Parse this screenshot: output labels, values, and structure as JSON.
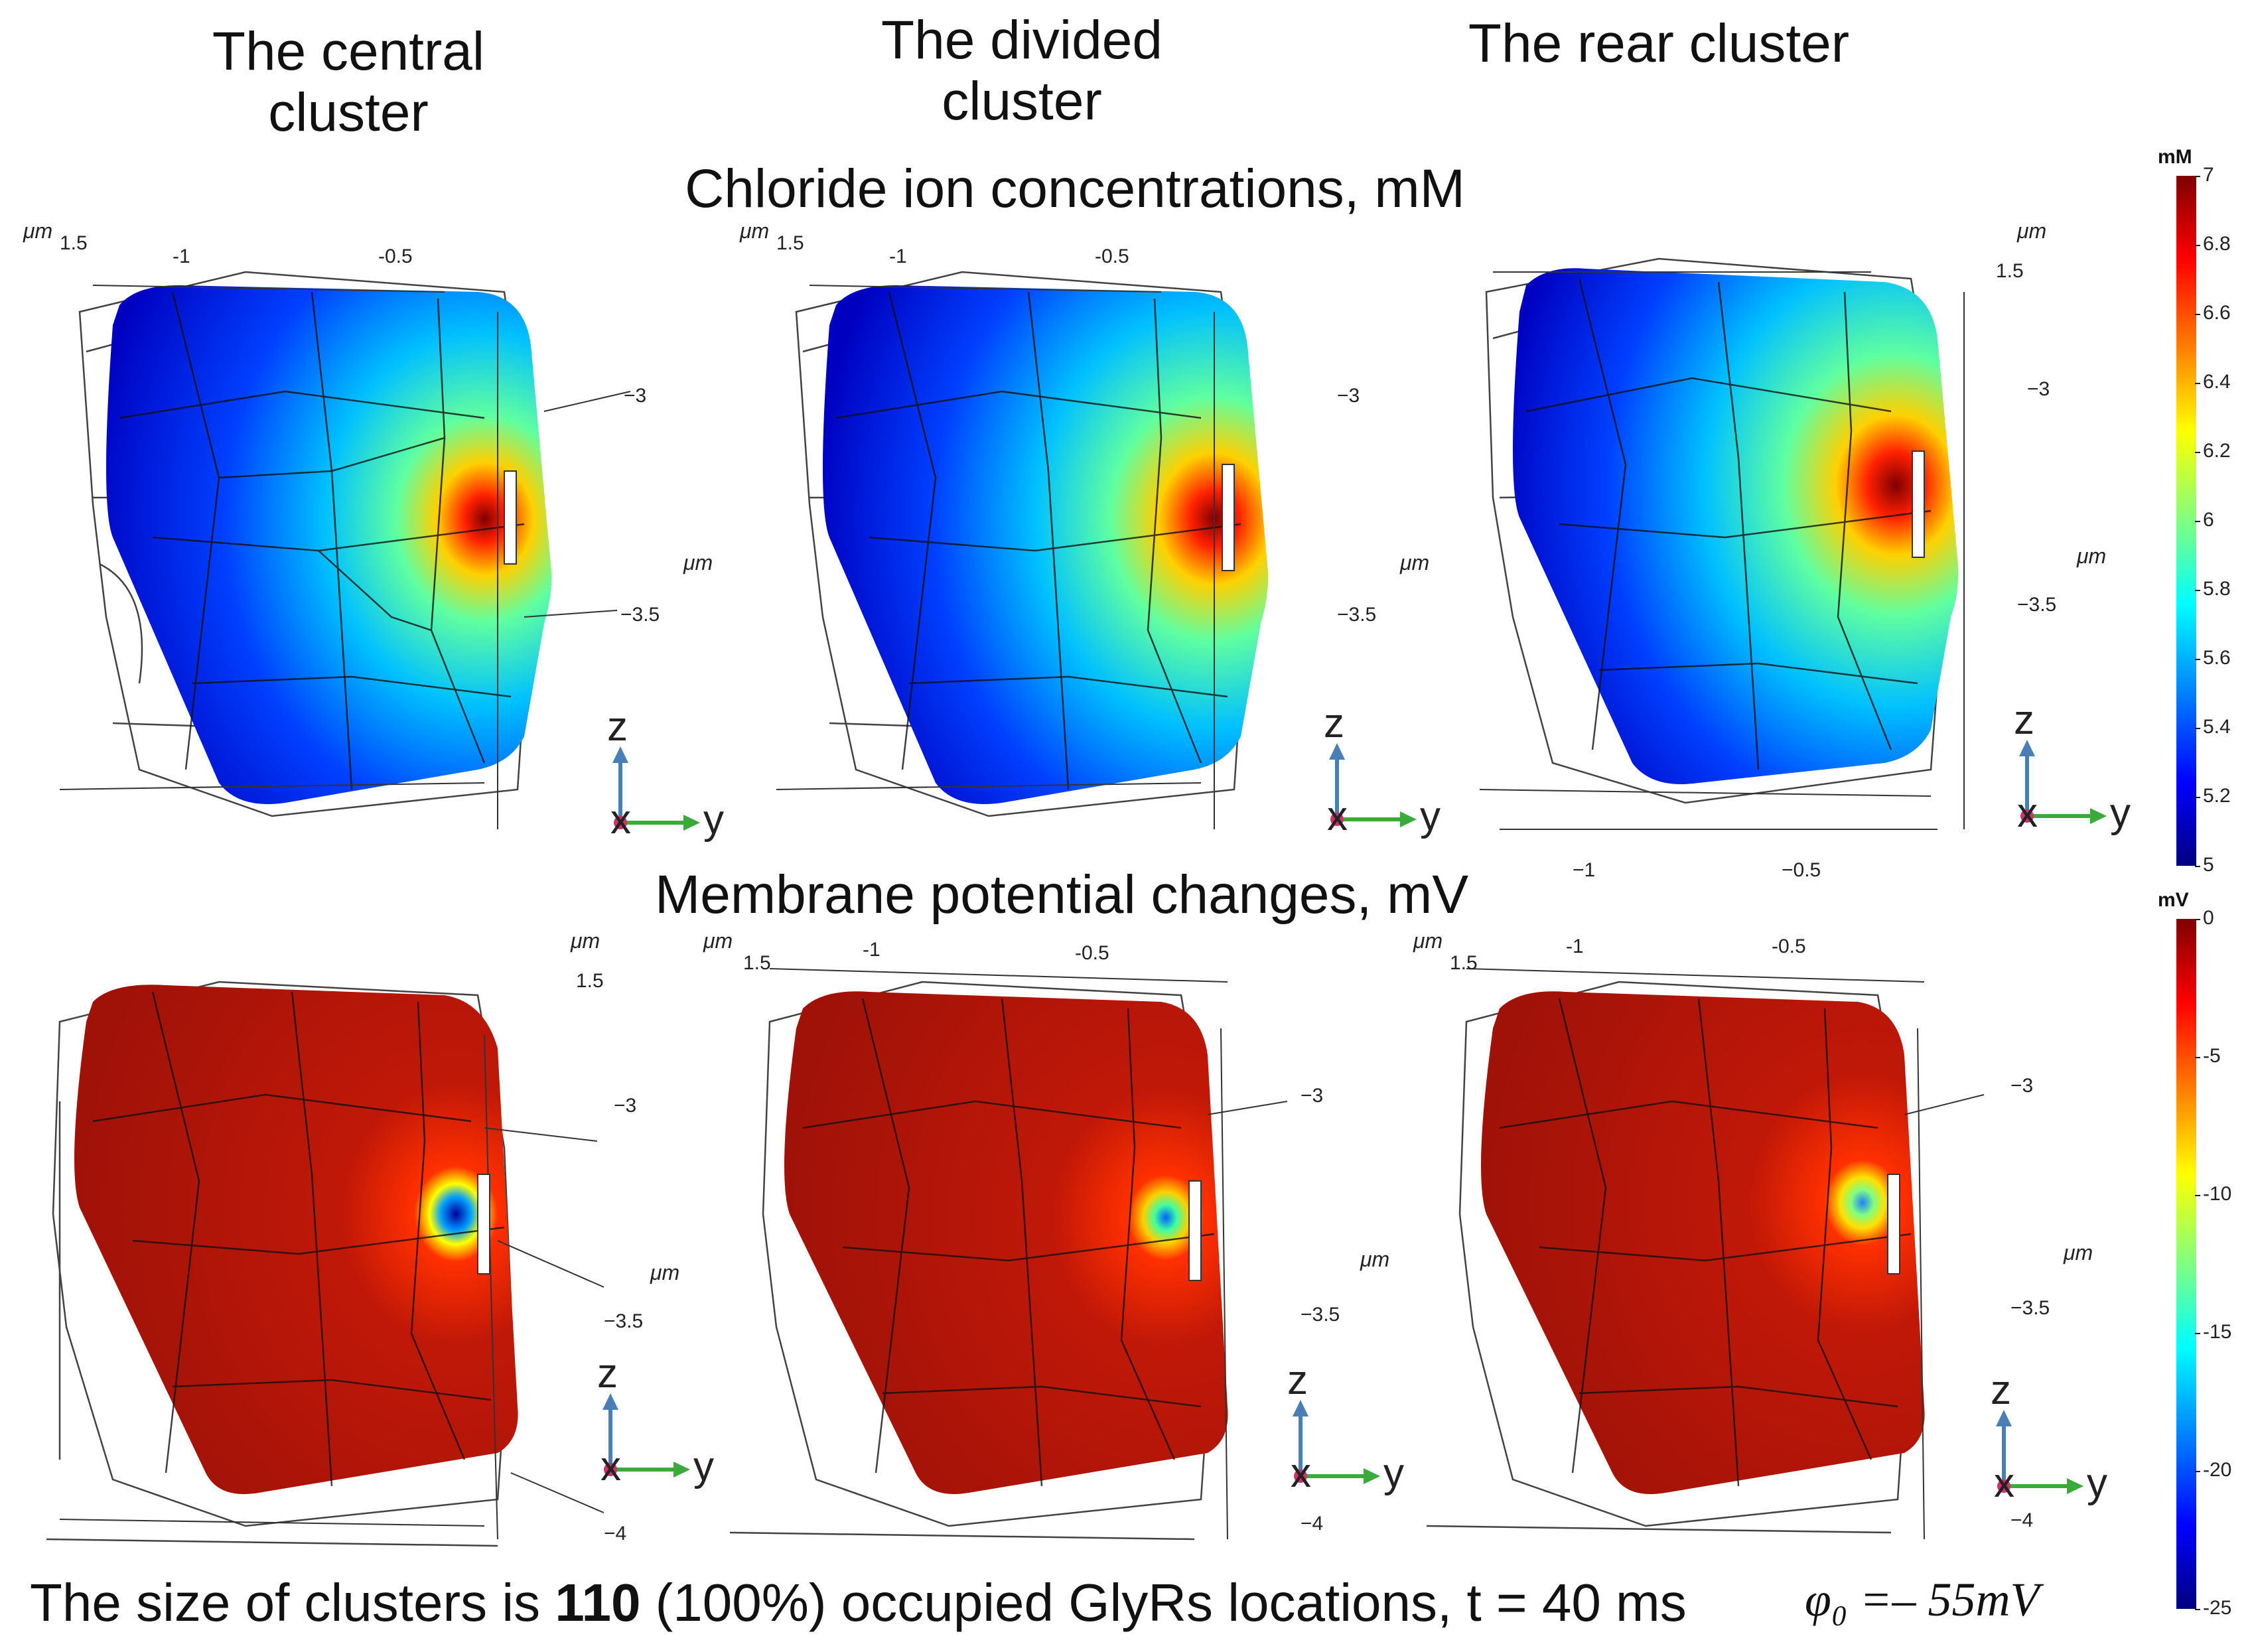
{
  "columns": {
    "central": "The central cluster",
    "divided": "The divided cluster",
    "rear": "The rear cluster"
  },
  "rows": {
    "top_title": "Chloride ion concentrations, mM",
    "bottom_title": "Membrane potential changes, mV"
  },
  "axes": {
    "unit": "μm",
    "ticks_y": [
      "-1",
      "-0.5"
    ],
    "ticks_y_rear": [
      "−1",
      "−0.5"
    ],
    "tick_top": "1.5",
    "ticks_z": [
      "−3",
      "−3.5",
      "−4"
    ],
    "triad": {
      "z": "z",
      "x": "x",
      "y": "y"
    }
  },
  "colorbar_cl": {
    "unit": "mM",
    "ticks": [
      "7",
      "6.8",
      "6.6",
      "6.4",
      "6.2",
      "6",
      "5.8",
      "5.6",
      "5.4",
      "5.2",
      "5"
    ]
  },
  "colorbar_mv": {
    "unit": "mV",
    "ticks": [
      "0",
      "-5",
      "-10",
      "-15",
      "-20",
      "-25"
    ]
  },
  "footer": {
    "pre": "The size of clusters is ",
    "bold": "110",
    "post": " (100%) occupied GlyRs locations, t = 40 ms",
    "phi": "φ₀ =– 55mV"
  },
  "colors": {
    "jet": [
      "#00007f",
      "#0000ff",
      "#0080ff",
      "#00ffff",
      "#80ff80",
      "#ffff00",
      "#ff8000",
      "#ff0000",
      "#7f0000"
    ],
    "membrane": "#b01a10",
    "mesh": "#222222",
    "triad_z": "#4a7fb5",
    "triad_y": "#3aaa3a",
    "triad_x": "#d0306a"
  }
}
